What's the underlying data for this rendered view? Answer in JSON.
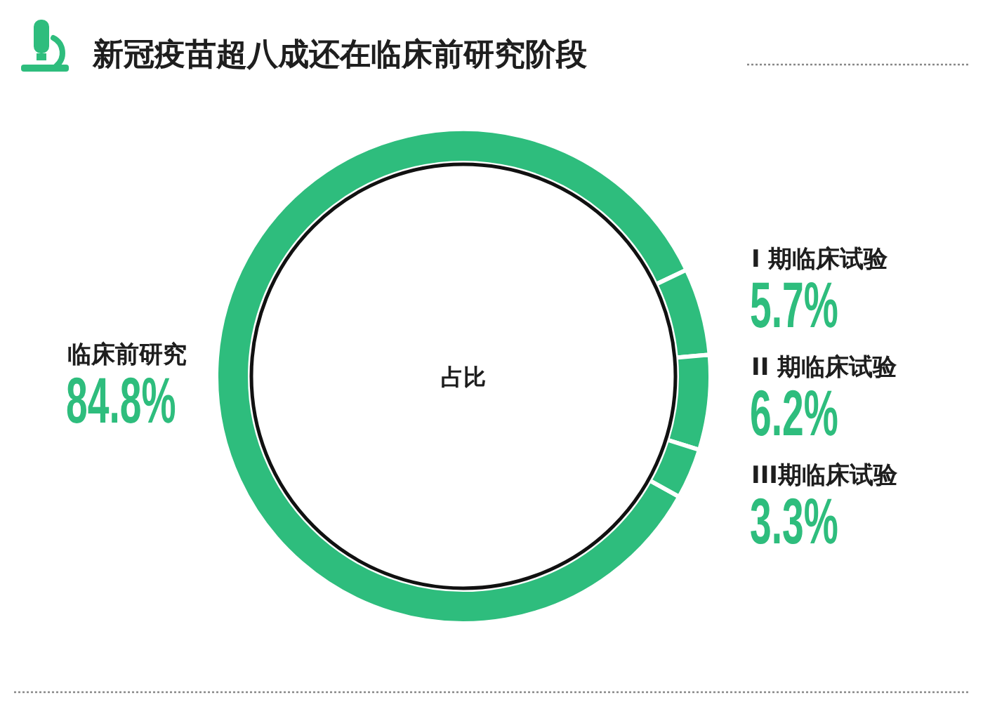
{
  "chart_data": {
    "type": "donut",
    "title": "新冠疫苗超八成还在临床前研究阶段",
    "categories": [
      "临床前研究",
      "I 期临床试验",
      "II 期临床试验",
      "III期临床试验"
    ],
    "values": [
      84.8,
      5.7,
      6.2,
      3.3
    ],
    "colors": [
      "#2ebd7d",
      "#2ebd7d",
      "#2ebd7d",
      "#2ebd7d"
    ],
    "value_labels": [
      "84.8%",
      "5.7%",
      "6.2%",
      "3.3%"
    ],
    "annotations": [
      "占比"
    ]
  }
}
